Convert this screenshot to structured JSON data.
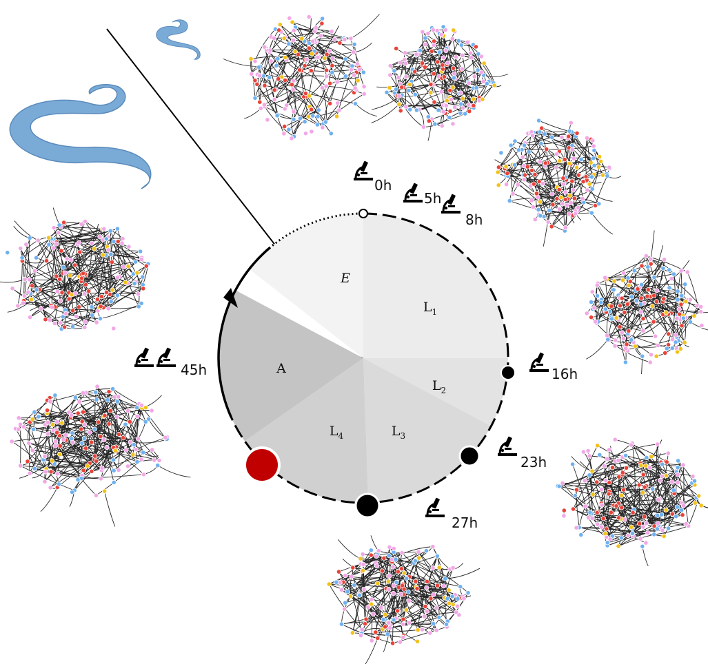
{
  "stages": [
    {
      "id": "E",
      "label": "E",
      "sub": "",
      "italic": true,
      "color": "#f3f3f3"
    },
    {
      "id": "L1",
      "label": "L",
      "sub": "1",
      "italic": false,
      "color": "#ececec"
    },
    {
      "id": "L2",
      "label": "L",
      "sub": "2",
      "italic": false,
      "color": "#e3e3e3"
    },
    {
      "id": "L3",
      "label": "L",
      "sub": "3",
      "italic": false,
      "color": "#dadada"
    },
    {
      "id": "L4",
      "label": "L",
      "sub": "4",
      "italic": false,
      "color": "#d0d0d0"
    },
    {
      "id": "A",
      "label": "A",
      "sub": "",
      "italic": false,
      "color": "#c4c4c4"
    }
  ],
  "timepoints": [
    {
      "label": "0h"
    },
    {
      "label": "5h"
    },
    {
      "label": "8h"
    },
    {
      "label": "16h"
    },
    {
      "label": "23h"
    },
    {
      "label": "27h"
    },
    {
      "label": "45h"
    }
  ],
  "colors": {
    "edge": "#000000",
    "worm": "#7aaad6",
    "current_marker": "#c00000",
    "node_palette": [
      "#e8433a",
      "#f2a7e6",
      "#6fb1f0",
      "#f2c21b"
    ]
  },
  "icons": [
    "worm-icon",
    "microscope-icon"
  ]
}
